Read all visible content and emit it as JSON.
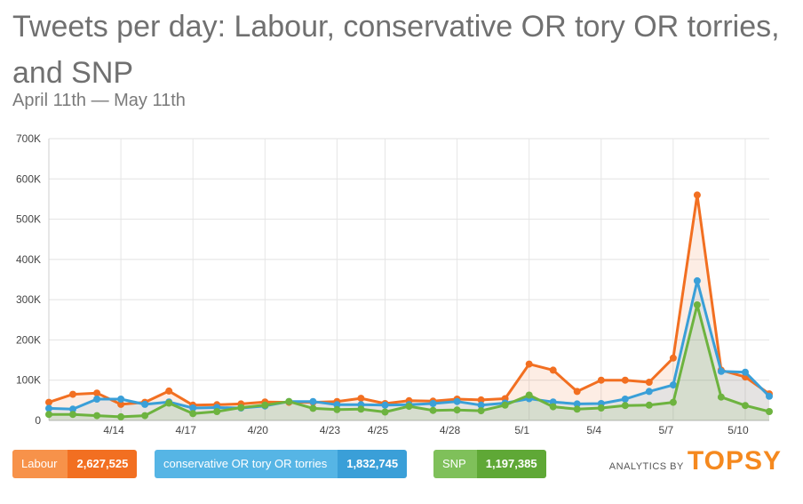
{
  "header": {
    "title": "Tweets per day: Labour, conservative OR tory OR torries, and SNP",
    "subtitle": "April 11th — May 11th"
  },
  "legend": [
    {
      "name": "Labour",
      "total": "2,627,525",
      "color": "#f26f21",
      "name_bg": "#f7924a",
      "total_bg": "#f26f21"
    },
    {
      "name": "conservative OR tory OR torries",
      "total": "1,832,745",
      "color": "#3a9fd8",
      "name_bg": "#56b5e5",
      "total_bg": "#3a9fd8"
    },
    {
      "name": "SNP",
      "total": "1,197,385",
      "color": "#6db33f",
      "name_bg": "#7fc05a",
      "total_bg": "#5fa836"
    }
  ],
  "branding": {
    "prefix": "ANALYTICS BY",
    "logo": "TOPSY"
  },
  "chart_data": {
    "type": "line",
    "title": "Tweets per day: Labour, conservative OR tory OR torries, and SNP",
    "subtitle": "April 11th — May 11th",
    "xlabel": "",
    "ylabel": "",
    "x": [
      "4/11",
      "4/12",
      "4/13",
      "4/14",
      "4/15",
      "4/16",
      "4/17",
      "4/18",
      "4/19",
      "4/20",
      "4/21",
      "4/22",
      "4/23",
      "4/24",
      "4/25",
      "4/26",
      "4/27",
      "4/28",
      "4/29",
      "4/30",
      "5/1",
      "5/2",
      "5/3",
      "5/4",
      "5/5",
      "5/6",
      "5/7",
      "5/8",
      "5/9",
      "5/10",
      "5/11"
    ],
    "x_tick_labels": [
      "4/14",
      "4/17",
      "4/20",
      "4/23",
      "4/25",
      "4/28",
      "5/1",
      "5/4",
      "5/7",
      "5/10"
    ],
    "y_tick_labels": [
      "0",
      "100K",
      "200K",
      "300K",
      "400K",
      "500K",
      "600K",
      "700K"
    ],
    "ylim": [
      0,
      700000
    ],
    "grid": true,
    "legend_position": "bottom",
    "series": [
      {
        "name": "Labour",
        "color": "#f26f21",
        "values": [
          45000,
          65000,
          68000,
          40000,
          45000,
          73000,
          38000,
          39000,
          41000,
          46000,
          45000,
          45000,
          47000,
          55000,
          42000,
          49000,
          48000,
          53000,
          51000,
          54000,
          140000,
          125000,
          72000,
          100000,
          100000,
          95000,
          155000,
          560000,
          125000,
          108000,
          66000
        ]
      },
      {
        "name": "conservative OR tory OR torries",
        "color": "#3a9fd8",
        "values": [
          30000,
          28000,
          53000,
          53000,
          40000,
          46000,
          31000,
          32000,
          31000,
          36000,
          47000,
          47000,
          39000,
          39000,
          38000,
          39000,
          42000,
          47000,
          38000,
          43000,
          54000,
          46000,
          41000,
          42000,
          53000,
          72000,
          88000,
          347000,
          122000,
          120000,
          60000
        ]
      },
      {
        "name": "SNP",
        "color": "#6db33f",
        "values": [
          15000,
          15000,
          12000,
          9000,
          12000,
          43000,
          17000,
          22000,
          32000,
          38000,
          47000,
          30000,
          27000,
          28000,
          21000,
          35000,
          25000,
          26000,
          24000,
          38000,
          63000,
          34000,
          28000,
          31000,
          37000,
          38000,
          45000,
          287000,
          58000,
          37000,
          22000
        ]
      }
    ]
  }
}
